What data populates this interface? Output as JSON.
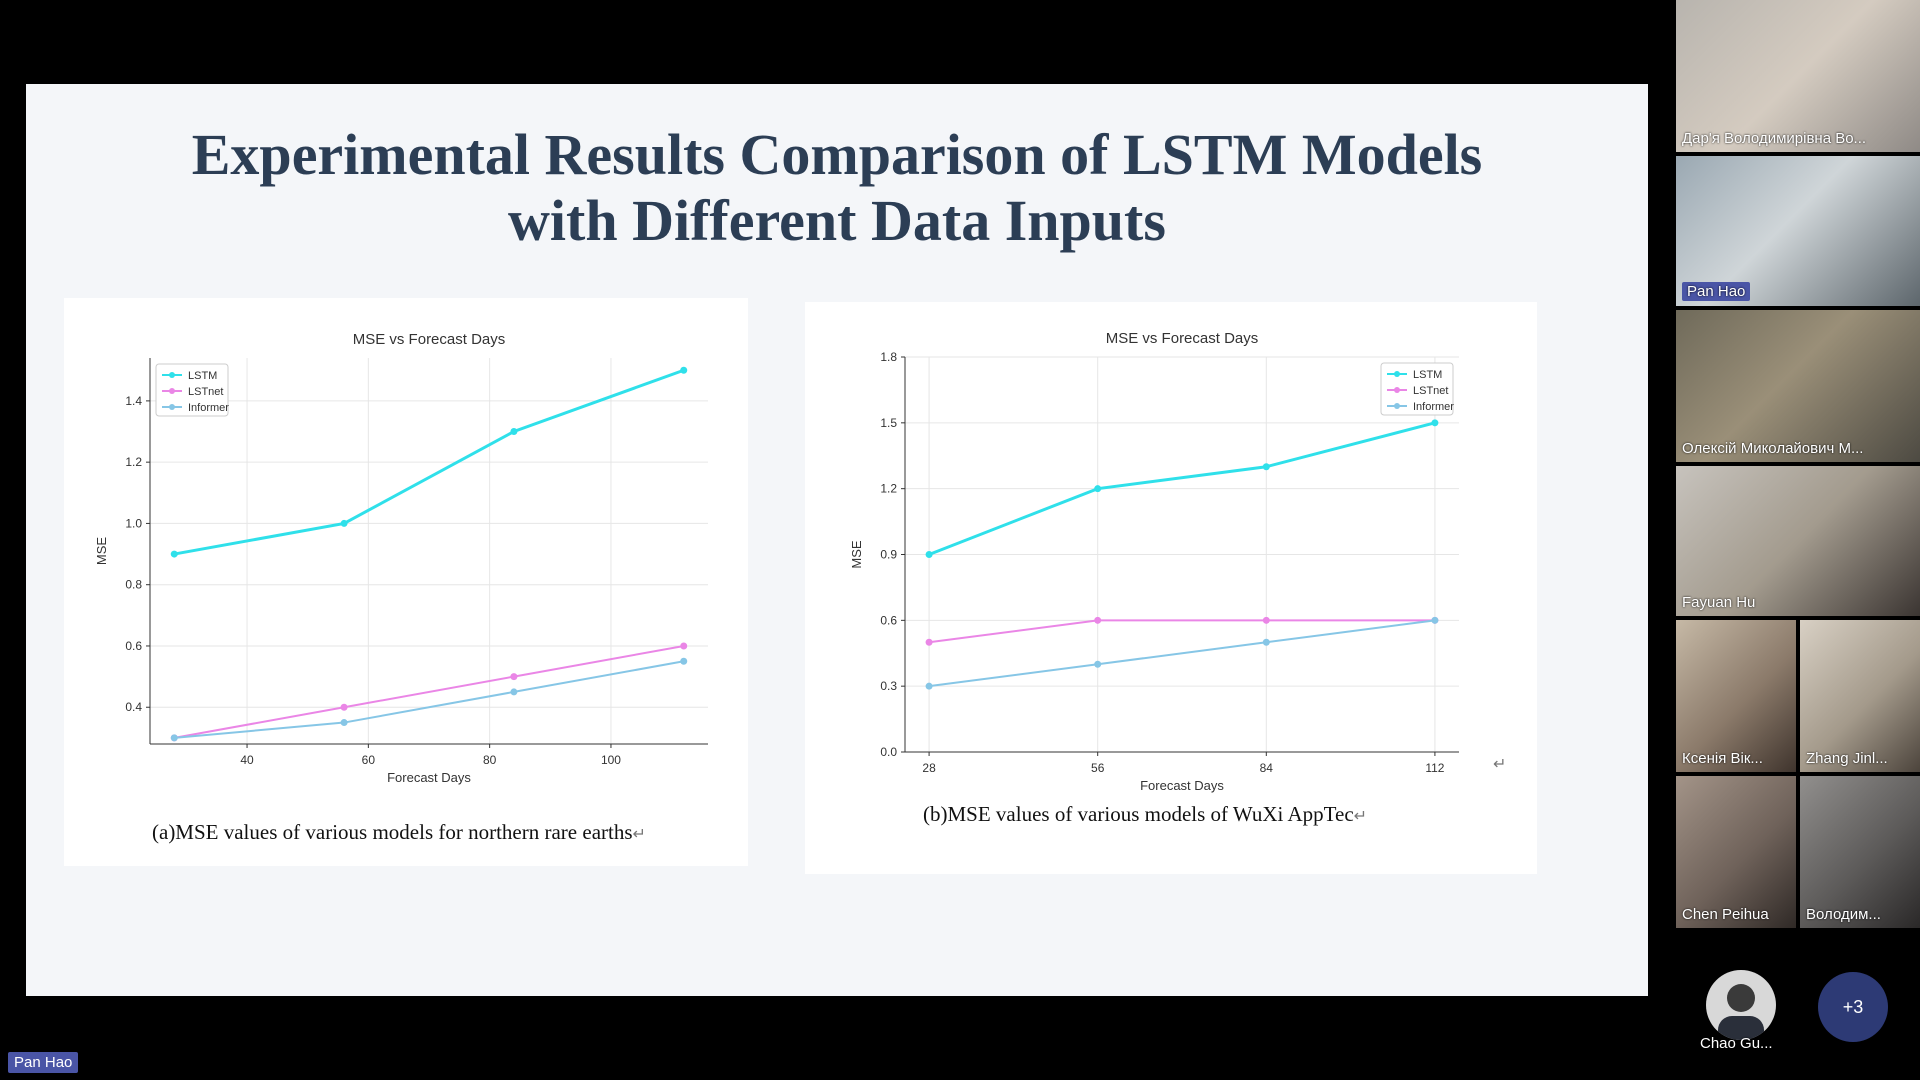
{
  "slide": {
    "title_line1": "Experimental Results Comparison of LSTM Models",
    "title_line2": "with Different Data Inputs"
  },
  "charts": [
    {
      "caption": "(a)MSE values of various models for northern rare earths",
      "chart_data": {
        "type": "line",
        "title": "MSE vs Forecast Days",
        "xlabel": "Forecast Days",
        "ylabel": "MSE",
        "x": [
          28,
          56,
          84,
          112
        ],
        "xticks": [
          40,
          60,
          80,
          100
        ],
        "yticks": [
          0.4,
          0.6,
          0.8,
          1.0,
          1.2,
          1.4
        ],
        "xlim": [
          24,
          116
        ],
        "ylim": [
          0.28,
          1.54
        ],
        "grid": true,
        "legend_position": "top-left",
        "series": [
          {
            "name": "LSTM",
            "values": [
              0.9,
              1.0,
              1.3,
              1.5
            ],
            "color": "#2fe0ea"
          },
          {
            "name": "LSTnet",
            "values": [
              0.3,
              0.4,
              0.5,
              0.6
            ],
            "color": "#ea86e6"
          },
          {
            "name": "Informer",
            "values": [
              0.3,
              0.35,
              0.45,
              0.55
            ],
            "color": "#86c6e6"
          }
        ]
      }
    },
    {
      "caption": "(b)MSE values of various models of WuXi AppTec",
      "chart_data": {
        "type": "line",
        "title": "MSE vs Forecast Days",
        "xlabel": "Forecast Days",
        "ylabel": "MSE",
        "x": [
          28,
          56,
          84,
          112
        ],
        "xticks": [
          28,
          56,
          84,
          112
        ],
        "yticks": [
          0.0,
          0.3,
          0.6,
          0.9,
          1.2,
          1.5,
          1.8
        ],
        "xlim": [
          24,
          116
        ],
        "ylim": [
          0.0,
          1.8
        ],
        "grid": true,
        "legend_position": "top-right",
        "series": [
          {
            "name": "LSTM",
            "values": [
              0.9,
              1.2,
              1.3,
              1.5
            ],
            "color": "#2fe0ea"
          },
          {
            "name": "LSTnet",
            "values": [
              0.5,
              0.6,
              0.6,
              0.6
            ],
            "color": "#ea86e6"
          },
          {
            "name": "Informer",
            "values": [
              0.3,
              0.4,
              0.5,
              0.6
            ],
            "color": "#86c6e6"
          }
        ]
      }
    }
  ],
  "participants": [
    {
      "name": "Дар'я Володимирівна Во..."
    },
    {
      "name": "Pan Hao"
    },
    {
      "name": "Олексій Миколайович М..."
    },
    {
      "name": "Fayuan Hu"
    },
    {
      "name": "Ксенія Вік..."
    },
    {
      "name": "Zhang Jinl..."
    },
    {
      "name": "Chen Peihua"
    },
    {
      "name": "Володим..."
    },
    {
      "name": "Chao Gu..."
    }
  ],
  "more_count": "+3",
  "speaker_label": "Pan Hao"
}
